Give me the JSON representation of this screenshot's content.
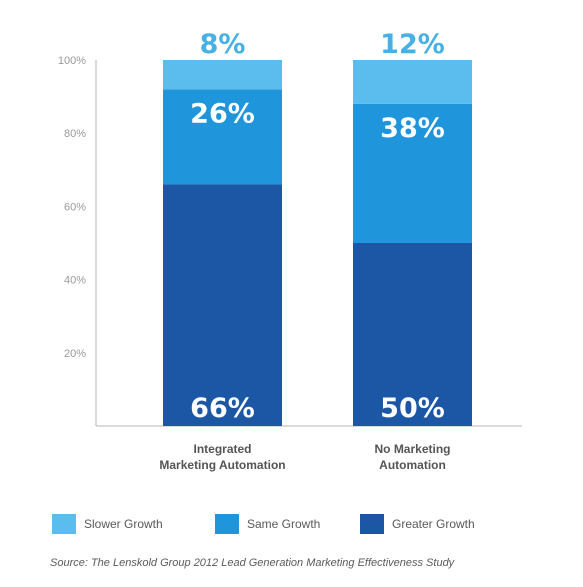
{
  "chart_data": {
    "type": "bar",
    "stacked": true,
    "categories": [
      "Integrated Marketing Automation",
      "No Marketing Automation"
    ],
    "category_lines": [
      [
        "Integrated",
        "Marketing Automation"
      ],
      [
        "No Marketing",
        "Automation"
      ]
    ],
    "series": [
      {
        "name": "Greater Growth",
        "values": [
          66,
          50
        ],
        "labels": [
          "66%",
          "50%"
        ],
        "color": "#1b57a5"
      },
      {
        "name": "Same Growth",
        "values": [
          26,
          38
        ],
        "labels": [
          "26%",
          "38%"
        ],
        "color": "#1f95db"
      },
      {
        "name": "Slower Growth",
        "values": [
          8,
          12
        ],
        "labels": [
          "8%",
          "12%"
        ],
        "color": "#5bbdee"
      }
    ],
    "yticks": [
      "20%",
      "40%",
      "60%",
      "80%",
      "100%"
    ],
    "ytick_values": [
      20,
      40,
      60,
      80,
      100
    ],
    "ylim": [
      0,
      100
    ],
    "grid": false,
    "legend_order": [
      "Slower Growth",
      "Same Growth",
      "Greater Growth"
    ],
    "legend_position": "bottom",
    "source": "Source: The Lenskold Group 2012 Lead Generation Marketing Effectiveness Study"
  }
}
